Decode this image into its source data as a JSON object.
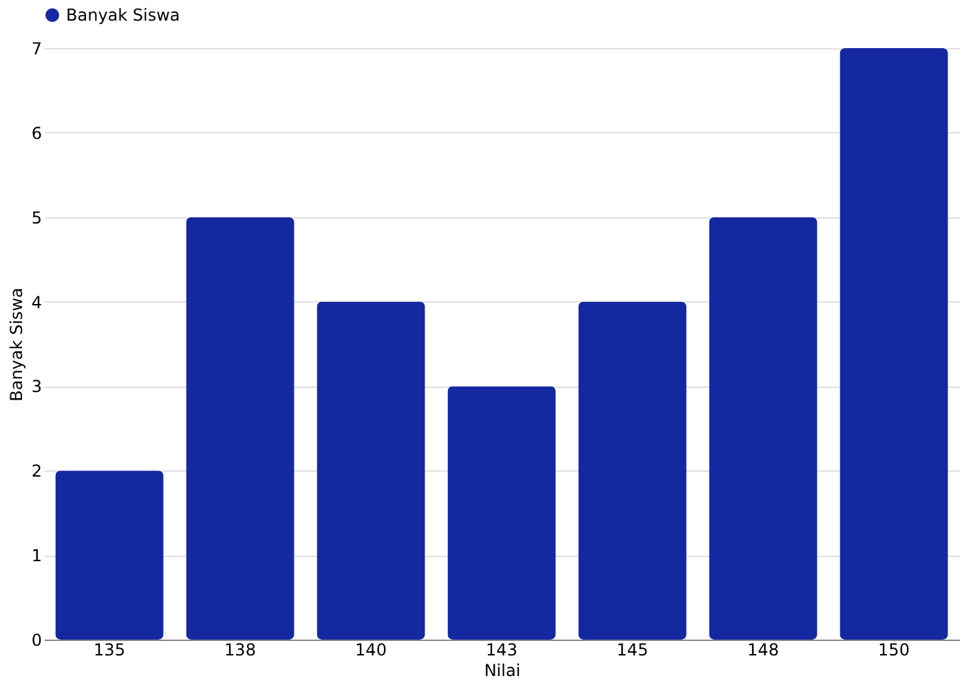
{
  "chart_data": {
    "type": "bar",
    "xlabel": "Nilai",
    "ylabel": "Banyak Siswa",
    "categories": [
      "135",
      "138",
      "140",
      "143",
      "145",
      "148",
      "150"
    ],
    "series": [
      {
        "name": "Banyak Siswa",
        "color": "#1428a0",
        "values": [
          2,
          5,
          4,
          3,
          4,
          5,
          7
        ]
      }
    ],
    "ylim": [
      0,
      7
    ],
    "yticks": [
      0,
      1,
      2,
      3,
      4,
      5,
      6,
      7
    ],
    "grid": "y",
    "legend": "top"
  }
}
